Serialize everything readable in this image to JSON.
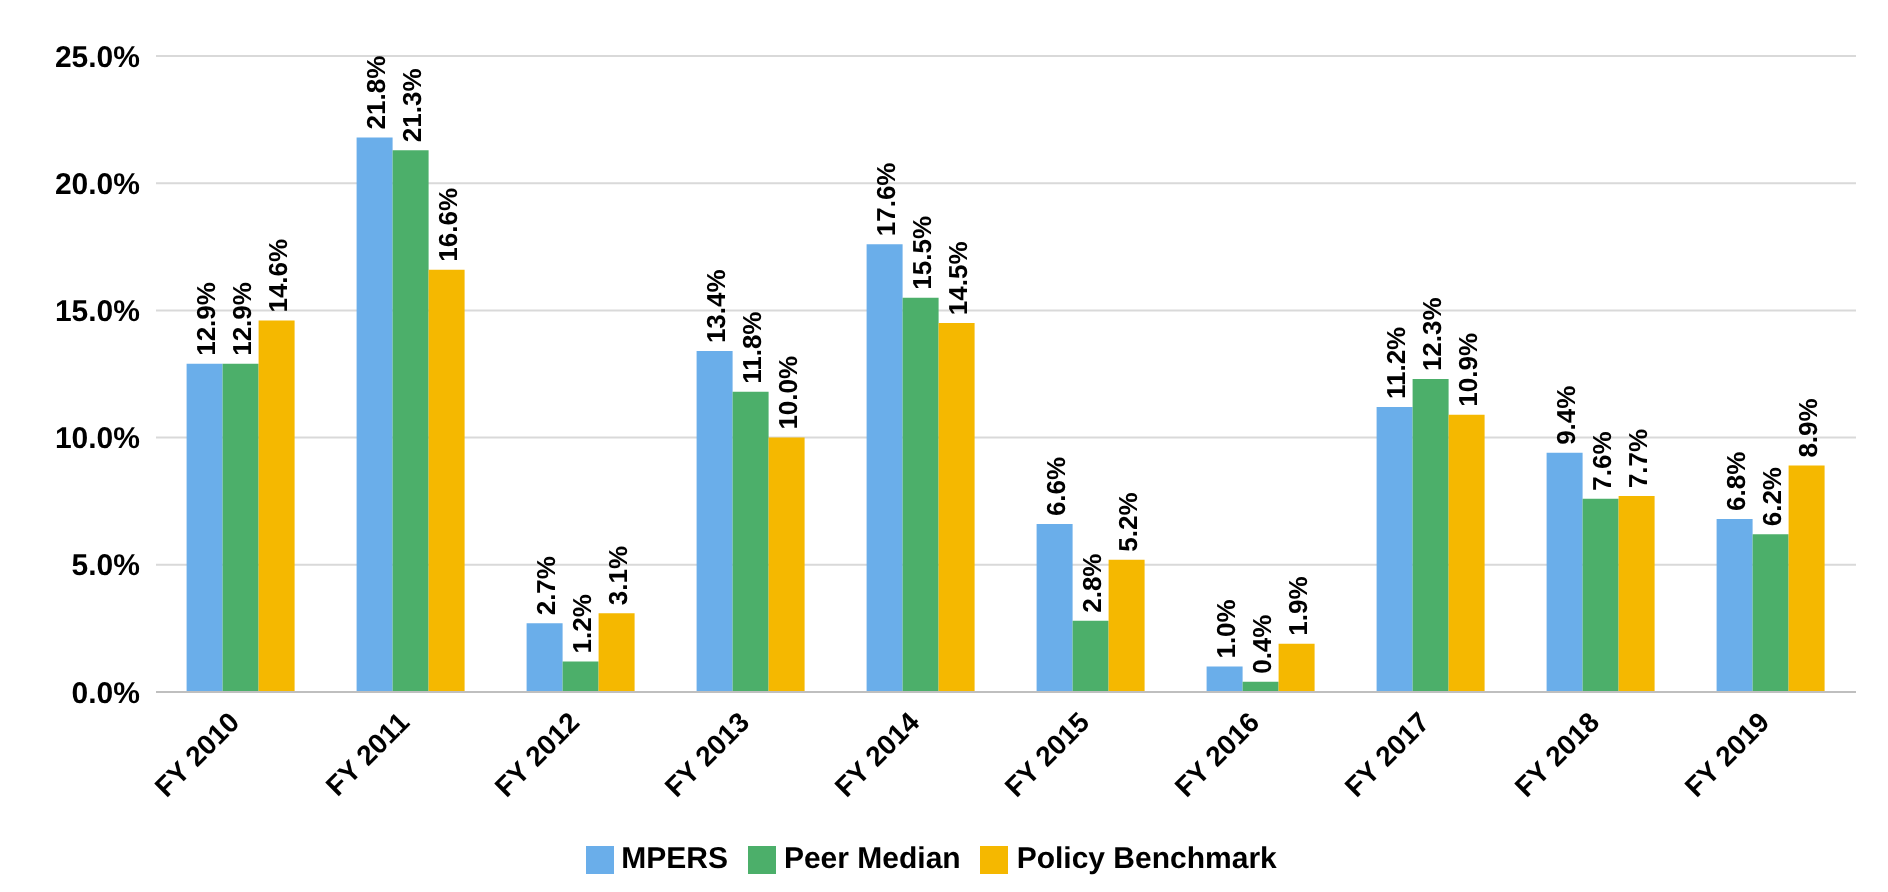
{
  "chart_data": {
    "type": "bar",
    "categories": [
      "FY 2010",
      "FY 2011",
      "FY 2012",
      "FY 2013",
      "FY 2014",
      "FY 2015",
      "FY 2016",
      "FY 2017",
      "FY 2018",
      "FY 2019"
    ],
    "series": [
      {
        "name": "MPERS",
        "color": "#6aaeea",
        "values": [
          12.9,
          21.8,
          2.7,
          13.4,
          17.6,
          6.6,
          1.0,
          11.2,
          9.4,
          6.8
        ],
        "value_labels": [
          "12.9%",
          "21.8%",
          "2.7%",
          "13.4%",
          "17.6%",
          "6.6%",
          "1.0%",
          "11.2%",
          "9.4%",
          "6.8%"
        ]
      },
      {
        "name": "Peer Median",
        "color": "#4caf6a",
        "values": [
          12.9,
          21.3,
          1.2,
          11.8,
          15.5,
          2.8,
          0.4,
          12.3,
          7.6,
          6.2
        ],
        "value_labels": [
          "12.9%",
          "21.3%",
          "1.2%",
          "11.8%",
          "15.5%",
          "2.8%",
          "0.4%",
          "12.3%",
          "7.6%",
          "6.2%"
        ]
      },
      {
        "name": "Policy Benchmark",
        "color": "#f5b800",
        "values": [
          14.6,
          16.6,
          3.1,
          10.0,
          14.5,
          5.2,
          1.9,
          10.9,
          7.7,
          8.9
        ],
        "value_labels": [
          "14.6%",
          "16.6%",
          "3.1%",
          "10.0%",
          "14.5%",
          "5.2%",
          "1.9%",
          "10.9%",
          "7.7%",
          "8.9%"
        ]
      }
    ],
    "ylim": [
      0,
      25
    ],
    "yticks": [
      {
        "value": 0,
        "label": "0.0%"
      },
      {
        "value": 5,
        "label": "5.0%"
      },
      {
        "value": 10,
        "label": "10.0%"
      },
      {
        "value": 15,
        "label": "15.0%"
      },
      {
        "value": 20,
        "label": "20.0%"
      },
      {
        "value": 25,
        "label": "25.0%"
      }
    ],
    "grid": "y",
    "legend": "bottom"
  }
}
